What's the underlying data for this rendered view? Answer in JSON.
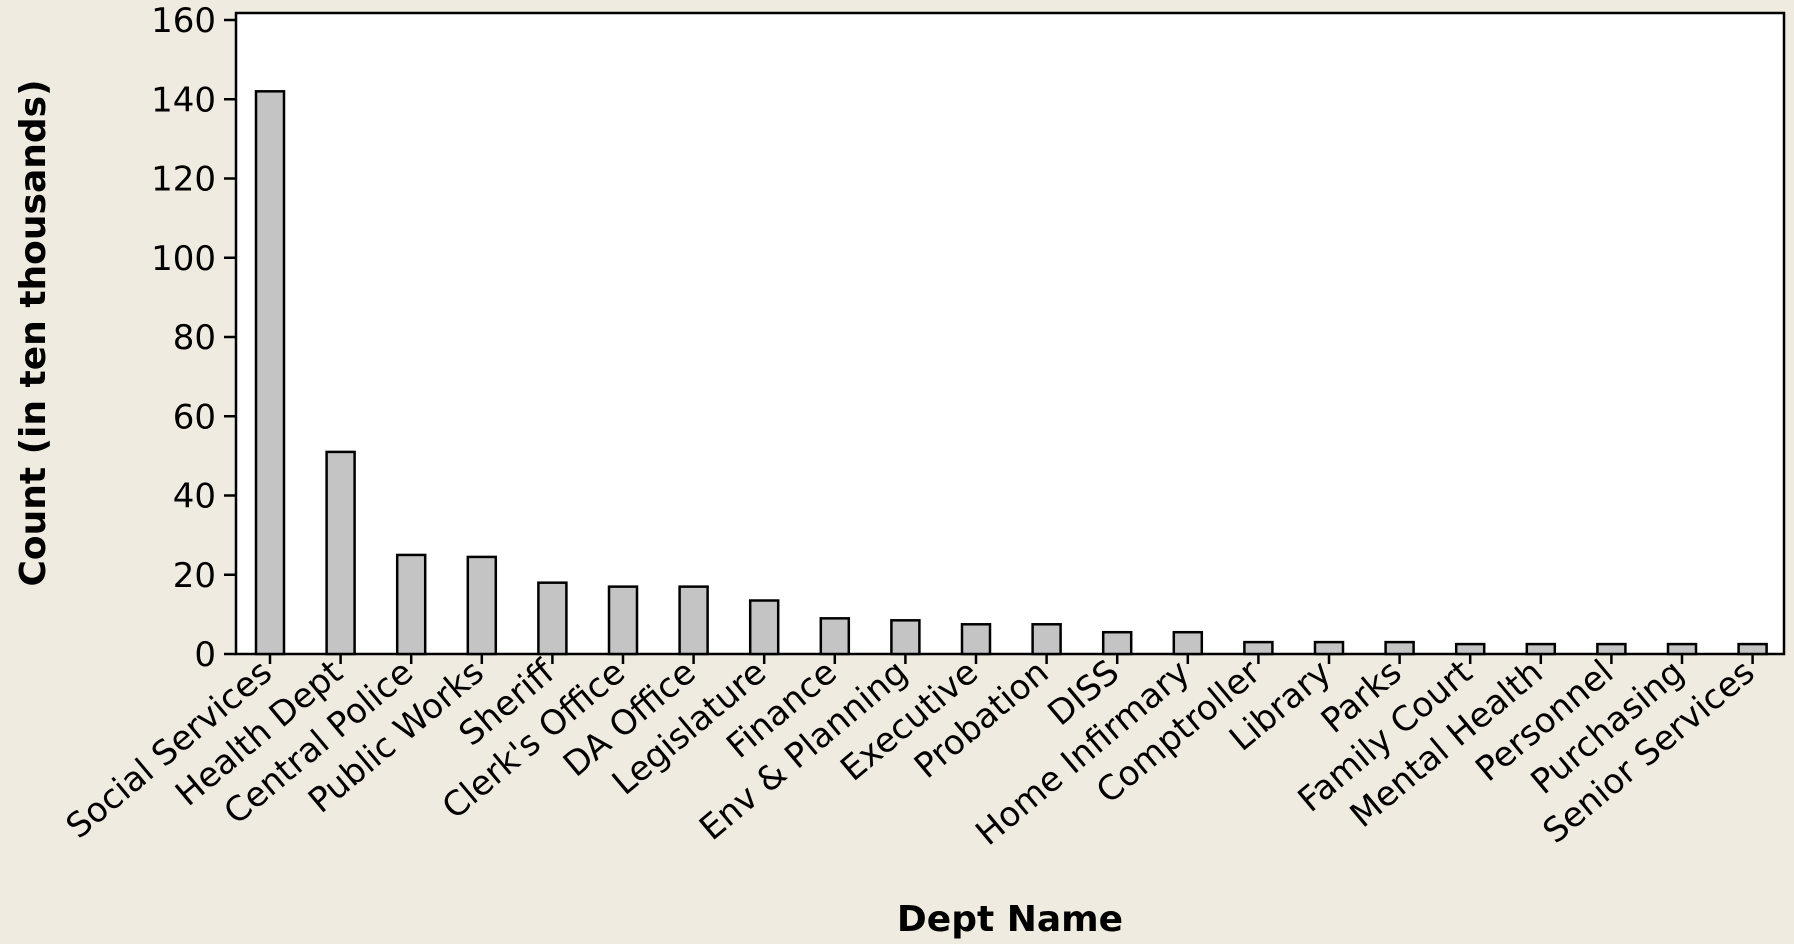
{
  "chart_data": {
    "type": "bar",
    "title": "",
    "xlabel": "Dept Name",
    "ylabel": "Count (in ten thousands)",
    "ylim": [
      0,
      160
    ],
    "yticks": [
      0,
      20,
      40,
      60,
      80,
      100,
      120,
      140,
      160
    ],
    "grid": false,
    "legend": "none",
    "categories": [
      "Social Services",
      "Health Dept",
      "Central Police",
      "Public Works",
      "Sheriff",
      "Clerk's Office",
      "DA Office",
      "Legislature",
      "Finance",
      "Env & Planning",
      "Executive",
      "Probation",
      "DISS",
      "Home Infirmary",
      "Comptroller",
      "Library",
      "Parks",
      "Family Court",
      "Mental Health",
      "Personnel",
      "Purchasing",
      "Senior Services"
    ],
    "values": [
      142,
      51,
      25,
      24.5,
      18,
      17,
      17,
      13.5,
      9,
      8.5,
      7.5,
      7.5,
      5.5,
      5.5,
      3,
      3,
      3,
      2.5,
      2.5,
      2.5,
      2.5,
      2.5
    ]
  },
  "colors": {
    "background": "#f0ebe0",
    "plot_background": "#ffffff",
    "bar_fill": "#c4c4c4",
    "bar_stroke": "#000000"
  }
}
